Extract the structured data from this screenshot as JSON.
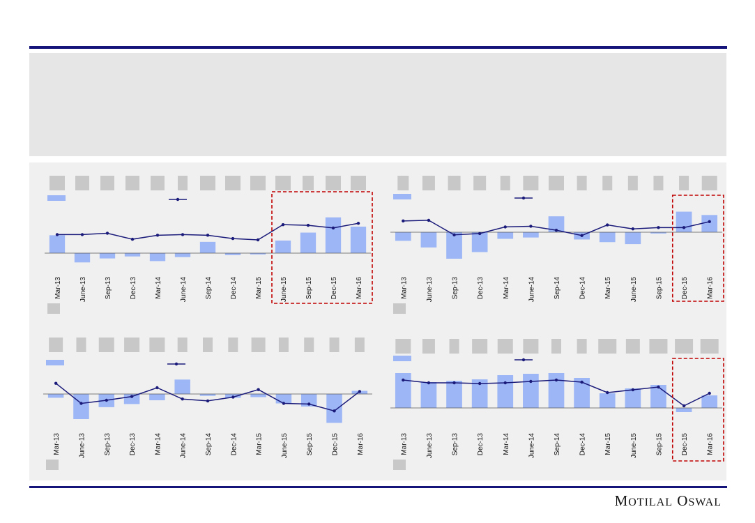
{
  "brand": {
    "name": "Motilal Oswal"
  },
  "colors": {
    "bar": "#9db6f5",
    "line": "#1a1a7a",
    "highlight": "#c00000",
    "placeholder": "#c8c8c8",
    "rule": "#14147a"
  },
  "chart_data": [
    {
      "type": "bar",
      "title": "",
      "xlabel": "",
      "ylabel": "",
      "categories": [
        "Mar-13",
        "June-13",
        "Sep-13",
        "Dec-13",
        "Mar-14",
        "June-14",
        "Sep-14",
        "Dec-14",
        "Mar-15",
        "June-15",
        "Sep-15",
        "Dec-15",
        "Mar-16"
      ],
      "series": [
        {
          "kind": "bar",
          "values": [
            27,
            -14,
            -8,
            -5,
            -12,
            -6,
            17,
            -3,
            -2,
            19,
            31,
            54,
            40
          ]
        },
        {
          "kind": "line",
          "values": [
            28,
            28,
            30,
            21,
            27,
            28,
            27,
            22,
            20,
            43,
            42,
            38,
            45
          ]
        }
      ],
      "ylim": [
        -30,
        90
      ],
      "highlight_categories": [
        "June-15",
        "Sep-15",
        "Dec-15",
        "Mar-16"
      ],
      "grid": false
    },
    {
      "type": "bar",
      "title": "",
      "xlabel": "",
      "ylabel": "",
      "categories": [
        "Mar-13",
        "June-13",
        "Sep-13",
        "Dec-13",
        "Mar-14",
        "June-14",
        "Sep-14",
        "Dec-14",
        "Mar-15",
        "June-15",
        "Sep-15",
        "Dec-15",
        "Mar-16"
      ],
      "series": [
        {
          "kind": "bar",
          "values": [
            -13,
            -23,
            -40,
            -30,
            -10,
            -8,
            24,
            -11,
            -15,
            -18,
            -2,
            31,
            26
          ]
        },
        {
          "kind": "line",
          "values": [
            17,
            18,
            -4,
            -2,
            8,
            9,
            3,
            -5,
            11,
            5,
            7,
            7,
            16
          ]
        }
      ],
      "ylim": [
        -50,
        60
      ],
      "highlight_categories": [
        "Dec-15",
        "Mar-16"
      ],
      "grid": false
    },
    {
      "type": "bar",
      "title": "",
      "xlabel": "",
      "ylabel": "",
      "categories": [
        "Mar-13",
        "June-13",
        "Sep-13",
        "Dec-13",
        "Mar-14",
        "June-14",
        "Sep-14",
        "Dec-14",
        "Mar-15",
        "June-15",
        "Sep-15",
        "Dec-15",
        "Mar-16"
      ],
      "series": [
        {
          "kind": "bar",
          "values": [
            -6,
            -40,
            -21,
            -16,
            -10,
            23,
            -3,
            -6,
            -5,
            -15,
            -20,
            -46,
            5
          ]
        },
        {
          "kind": "line",
          "values": [
            17,
            -15,
            -10,
            -4,
            10,
            -8,
            -11,
            -5,
            7,
            -15,
            -16,
            -27,
            4
          ]
        }
      ],
      "ylim": [
        -60,
        50
      ],
      "highlight_categories": [],
      "grid": false
    },
    {
      "type": "bar",
      "title": "",
      "xlabel": "",
      "ylabel": "",
      "categories": [
        "Mar-13",
        "June-13",
        "Sep-13",
        "Dec-13",
        "Mar-14",
        "June-14",
        "Sep-14",
        "Dec-14",
        "Mar-15",
        "June-15",
        "Sep-15",
        "Dec-15",
        "Mar-16"
      ],
      "series": [
        {
          "kind": "bar",
          "values": [
            50,
            37,
            39,
            41,
            47,
            49,
            50,
            43,
            21,
            28,
            33,
            -6,
            18
          ]
        },
        {
          "kind": "line",
          "values": [
            40,
            36,
            36,
            35,
            36,
            38,
            40,
            37,
            22,
            26,
            30,
            3,
            21
          ]
        }
      ],
      "ylim": [
        -20,
        80
      ],
      "highlight_categories": [
        "Dec-15",
        "Mar-16"
      ],
      "grid": false
    }
  ]
}
